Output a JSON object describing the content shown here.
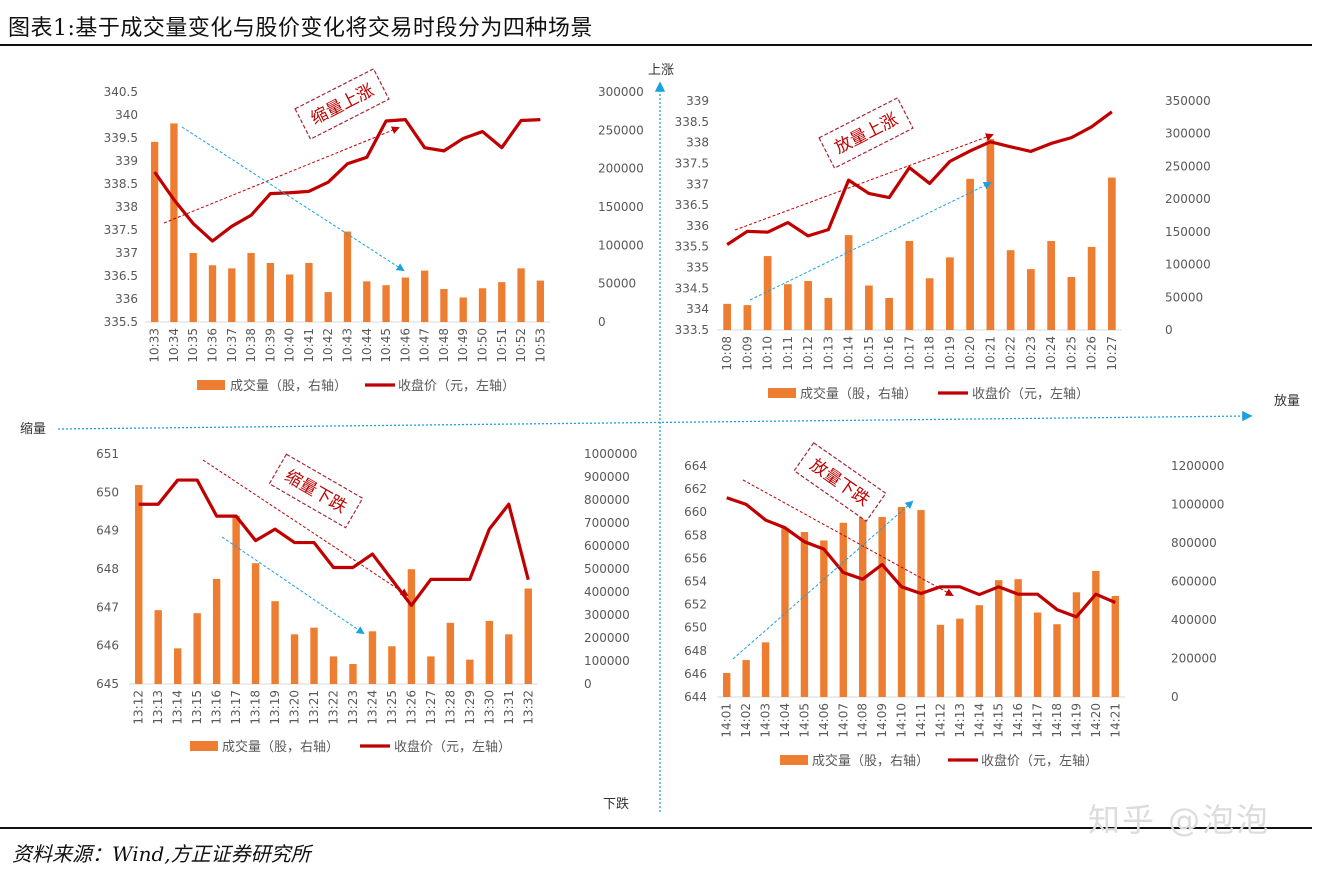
{
  "title": "图表1:基于成交量变化与股价变化将交易时段分为四种场景",
  "source": "资料来源：Wind,方正证券研究所",
  "watermark": "知乎 @泡泡",
  "quadrant_labels": {
    "up": "上涨",
    "down": "下跌",
    "shrink": "缩量",
    "expand": "放量"
  },
  "colors": {
    "volume": "#ED7D31",
    "price": "#C00000",
    "axis_arrow": "#1BA1E2",
    "trend_red": "#C00000"
  },
  "chart_data": [
    {
      "type": "bar+line",
      "annotation": "缩量上涨",
      "legend": [
        "成交量（股，右轴）",
        "收盘价（元，左轴）"
      ],
      "legend_position": "bottom",
      "categories": [
        "10:33",
        "10:34",
        "10:35",
        "10:36",
        "10:37",
        "10:38",
        "10:39",
        "10:40",
        "10:41",
        "10:42",
        "10:43",
        "10:44",
        "10:45",
        "10:46",
        "10:47",
        "10:48",
        "10:49",
        "10:50",
        "10:51",
        "10:52",
        "10:53"
      ],
      "series": [
        {
          "name": "成交量（股，右轴）",
          "type": "bar",
          "axis": "right",
          "values": [
            235000,
            259000,
            90000,
            74000,
            70000,
            90000,
            77000,
            62000,
            77000,
            39000,
            118000,
            53000,
            48000,
            58000,
            67000,
            43000,
            32000,
            44000,
            52000,
            70000,
            54000
          ]
        },
        {
          "name": "收盘价（元，左轴）",
          "type": "line",
          "axis": "left",
          "values": [
            338.76,
            338.16,
            337.64,
            337.26,
            337.58,
            337.82,
            338.29,
            338.31,
            338.34,
            338.54,
            338.94,
            339.08,
            339.87,
            339.9,
            339.29,
            339.22,
            339.49,
            339.64,
            339.29,
            339.88,
            339.9
          ]
        }
      ],
      "ylim_left": [
        335.5,
        340.5
      ],
      "ystep_left": 0.5,
      "ylim_right": [
        0,
        300000
      ],
      "ystep_right": 50000,
      "grid": false
    },
    {
      "type": "bar+line",
      "annotation": "放量上涨",
      "legend": [
        "成交量（股，右轴）",
        "收盘价（元，左轴）"
      ],
      "legend_position": "bottom",
      "categories": [
        "10:08",
        "10:09",
        "10:10",
        "10:11",
        "10:12",
        "10:13",
        "10:14",
        "10:15",
        "10:16",
        "10:17",
        "10:18",
        "10:19",
        "10:20",
        "10:21",
        "10:22",
        "10:23",
        "10:24",
        "10:25",
        "10:26",
        "10:27"
      ],
      "series": [
        {
          "name": "成交量（股，右轴）",
          "type": "bar",
          "axis": "right",
          "values": [
            40000,
            38000,
            113000,
            70000,
            75000,
            49000,
            145000,
            68000,
            49000,
            136000,
            79000,
            111000,
            231000,
            292000,
            122000,
            93000,
            136000,
            81000,
            127000,
            233000
          ]
        },
        {
          "name": "收盘价（元，左轴）",
          "type": "line",
          "axis": "left",
          "values": [
            335.55,
            335.87,
            335.85,
            336.08,
            335.76,
            335.91,
            337.1,
            336.78,
            336.68,
            337.4,
            337.02,
            337.55,
            337.8,
            338.02,
            337.9,
            337.79,
            337.98,
            338.12,
            338.38,
            338.74
          ]
        }
      ],
      "ylim_left": [
        333.5,
        339
      ],
      "ystep_left": 0.5,
      "ylim_right": [
        0,
        350000
      ],
      "ystep_right": 50000,
      "grid": false
    },
    {
      "type": "bar+line",
      "annotation": "缩量下跌",
      "legend": [
        "成交量（股，右轴）",
        "收盘价（元，左轴）"
      ],
      "legend_position": "bottom",
      "categories": [
        "13:12",
        "13:13",
        "13:14",
        "13:15",
        "13:16",
        "13:17",
        "13:18",
        "13:19",
        "13:20",
        "13:21",
        "13:22",
        "13:23",
        "13:24",
        "13:25",
        "13:26",
        "13:27",
        "13:28",
        "13:29",
        "13:30",
        "13:31",
        "13:32"
      ],
      "series": [
        {
          "name": "成交量（股，右轴）",
          "type": "bar",
          "axis": "right",
          "values": [
            865000,
            321000,
            155000,
            308000,
            457000,
            731000,
            525000,
            360000,
            216000,
            245000,
            120000,
            87000,
            229000,
            164000,
            499000,
            120000,
            266000,
            106000,
            274000,
            216000,
            415000
          ]
        },
        {
          "name": "收盘价（元，左轴）",
          "type": "line",
          "axis": "left",
          "values": [
            649.69,
            649.69,
            650.32,
            650.32,
            649.38,
            649.38,
            648.74,
            649.04,
            648.69,
            648.69,
            648.04,
            648.04,
            648.39,
            647.72,
            647.05,
            647.73,
            647.73,
            647.73,
            649.04,
            649.69,
            647.72
          ]
        }
      ],
      "ylim_left": [
        645,
        651
      ],
      "ystep_left": 1,
      "ylim_right": [
        0,
        1000000
      ],
      "ystep_right": 100000,
      "grid": false
    },
    {
      "type": "bar+line",
      "annotation": "放量下跌",
      "legend": [
        "成交量（股，右轴）",
        "收盘价（元，左轴）"
      ],
      "legend_position": "bottom",
      "categories": [
        "14:01",
        "14:02",
        "14:03",
        "14:04",
        "14:05",
        "14:06",
        "14:07",
        "14:08",
        "14:09",
        "14:10",
        "14:11",
        "14:12",
        "14:13",
        "14:14",
        "14:15",
        "14:16",
        "14:17",
        "14:18",
        "14:19",
        "14:20",
        "14:21"
      ],
      "series": [
        {
          "name": "成交量（股，右轴）",
          "type": "bar",
          "axis": "right",
          "values": [
            125000,
            192000,
            284000,
            876000,
            857000,
            813000,
            905000,
            959000,
            935000,
            987000,
            971000,
            375000,
            407000,
            477000,
            607000,
            612000,
            439000,
            378000,
            544000,
            655000,
            525000
          ]
        },
        {
          "name": "收盘价（元，左轴）",
          "type": "line",
          "axis": "left",
          "values": [
            661.25,
            660.68,
            659.32,
            658.65,
            657.44,
            656.8,
            654.78,
            654.2,
            655.47,
            653.54,
            652.96,
            653.54,
            653.54,
            652.87,
            653.54,
            652.9,
            652.9,
            651.57,
            650.94,
            652.9,
            652.18
          ]
        }
      ],
      "ylim_left": [
        644,
        664
      ],
      "ystep_left": 2,
      "ylim_right": [
        0,
        1200000
      ],
      "ystep_right": 200000,
      "grid": false
    }
  ]
}
